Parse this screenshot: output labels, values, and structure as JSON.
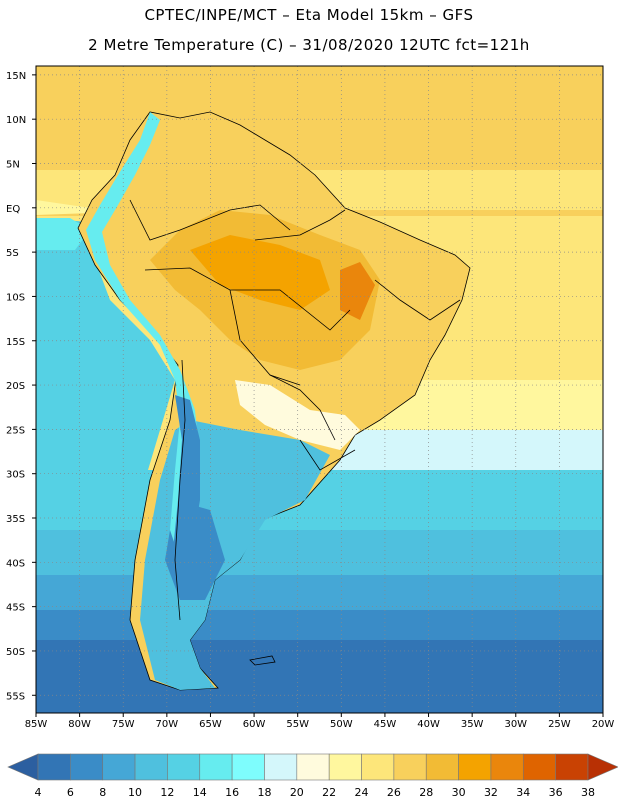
{
  "header": {
    "line1": "CPTEC/INPE/MCT –  Eta Model 15km – GFS",
    "line2": "2 Metre Temperature (C) – 31/08/2020 12UTC fct=121h"
  },
  "map": {
    "lat_labels": [
      "15N",
      "10N",
      "5N",
      "EQ",
      "5S",
      "10S",
      "15S",
      "20S",
      "25S",
      "30S",
      "35S",
      "40S",
      "45S",
      "50S",
      "55S"
    ],
    "lon_labels": [
      "85W",
      "80W",
      "75W",
      "70W",
      "65W",
      "60W",
      "55W",
      "50W",
      "45W",
      "40W",
      "35W",
      "30W",
      "25W",
      "20W"
    ],
    "extent": {
      "lon_min": -85,
      "lon_max": -20,
      "lat_min": -57,
      "lat_max": 16
    }
  },
  "colorbar": {
    "ticks": [
      "4",
      "6",
      "8",
      "10",
      "12",
      "14",
      "16",
      "18",
      "20",
      "22",
      "24",
      "26",
      "28",
      "30",
      "32",
      "34",
      "36",
      "38"
    ],
    "colors": [
      "#2c5fa0",
      "#3275b5",
      "#3a8cc7",
      "#45a7d6",
      "#4fc0de",
      "#55d1e4",
      "#66ecef",
      "#7efdfd",
      "#d4f7fb",
      "#fffbdd",
      "#fff79e",
      "#fde67a",
      "#f8d05c",
      "#f2bb35",
      "#f4a300",
      "#ea860c",
      "#df6400",
      "#c94203",
      "#b83004"
    ]
  }
}
